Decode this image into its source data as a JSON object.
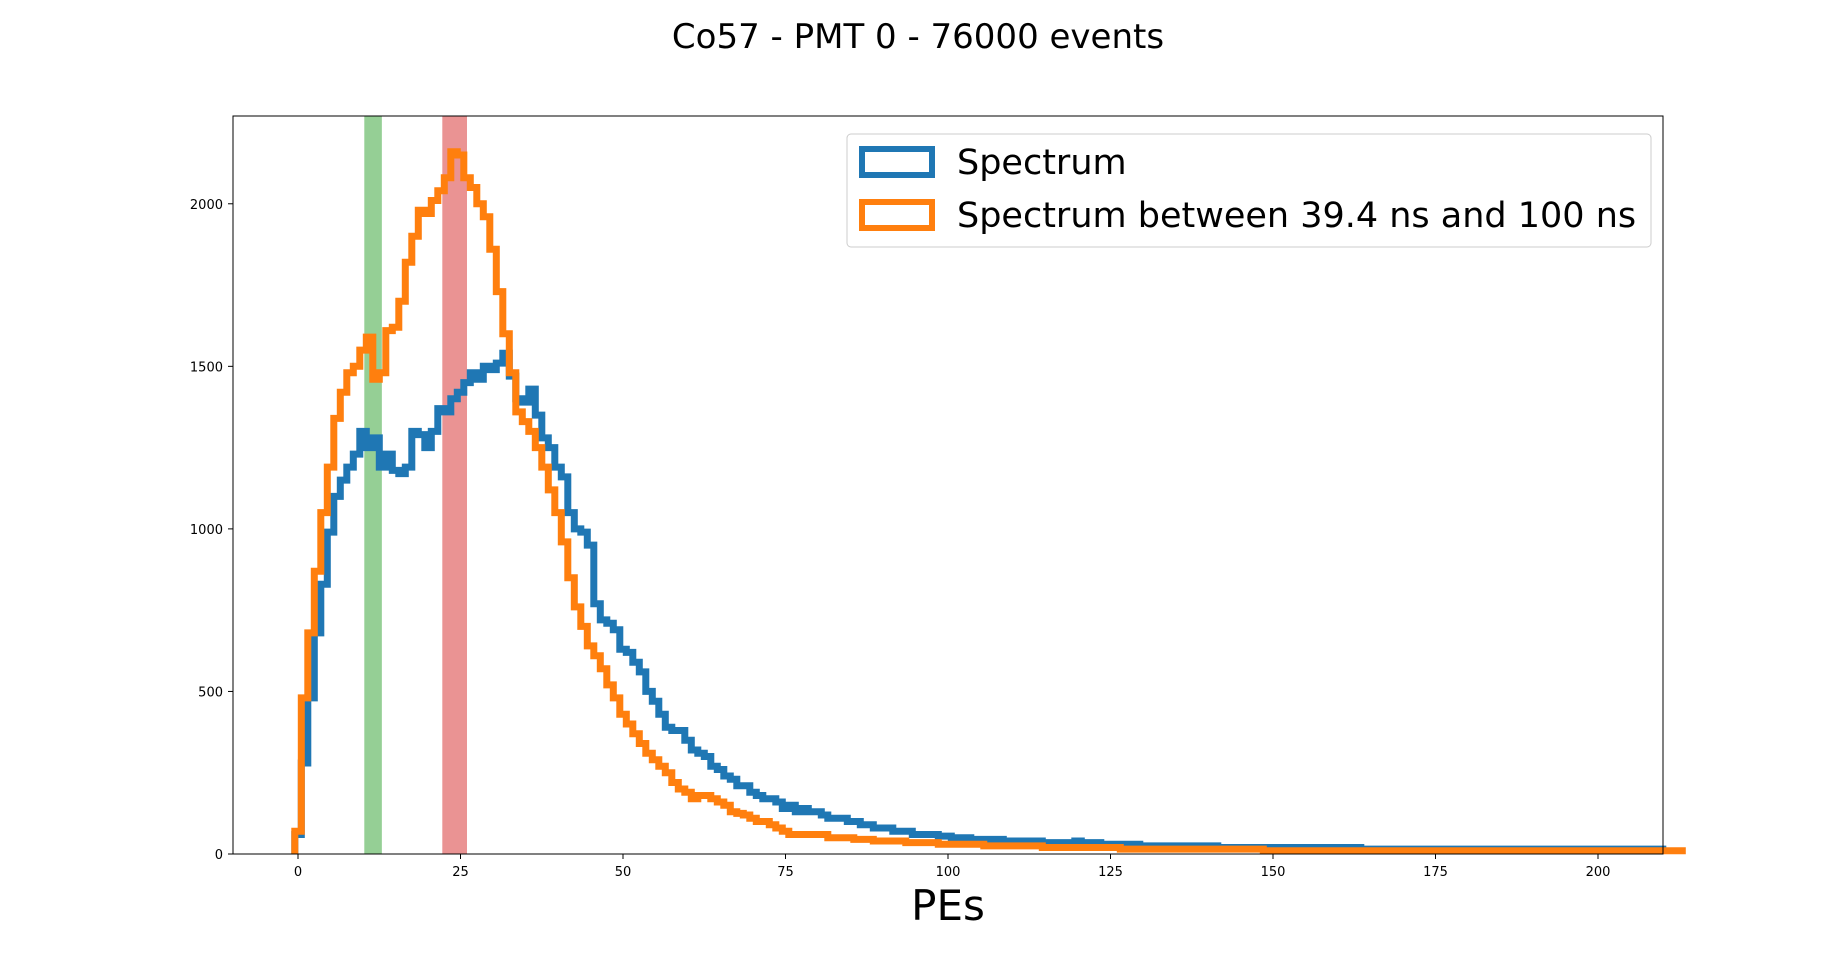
{
  "chart_data": {
    "type": "line",
    "title": "Co57 - PMT 0 - 76000 events",
    "xlabel": "PEs",
    "ylabel": "",
    "xlim": [
      -10,
      210
    ],
    "ylim": [
      0,
      2270
    ],
    "xticks": [
      0,
      25,
      50,
      75,
      100,
      125,
      150,
      175,
      200
    ],
    "yticks": [
      0,
      500,
      1000,
      1500,
      2000
    ],
    "grid": false,
    "legend_position": "top-right",
    "bin_width": 1,
    "x_start": -0.5,
    "highlight_bands": [
      {
        "x0": 10.2,
        "x1": 12.9,
        "color": "#2ca02c",
        "opacity": 0.5
      },
      {
        "x0": 22.2,
        "x1": 26.0,
        "color": "#d62728",
        "opacity": 0.5
      }
    ],
    "series": [
      {
        "name": "Spectrum",
        "color": "#1f77b4",
        "values": [
          60,
          280,
          480,
          680,
          830,
          990,
          1100,
          1150,
          1190,
          1230,
          1300,
          1250,
          1280,
          1190,
          1230,
          1180,
          1170,
          1190,
          1300,
          1290,
          1250,
          1300,
          1370,
          1360,
          1400,
          1420,
          1450,
          1480,
          1460,
          1500,
          1490,
          1510,
          1540,
          1470,
          1400,
          1390,
          1430,
          1350,
          1280,
          1250,
          1190,
          1160,
          1050,
          1000,
          990,
          950,
          770,
          720,
          710,
          690,
          630,
          620,
          590,
          560,
          500,
          470,
          430,
          390,
          380,
          380,
          350,
          320,
          310,
          300,
          270,
          260,
          240,
          230,
          210,
          210,
          190,
          180,
          170,
          170,
          160,
          140,
          150,
          130,
          140,
          130,
          130,
          120,
          110,
          110,
          110,
          100,
          100,
          90,
          90,
          80,
          80,
          80,
          70,
          70,
          70,
          60,
          60,
          60,
          60,
          55,
          55,
          50,
          50,
          50,
          45,
          45,
          45,
          45,
          45,
          40,
          40,
          40,
          40,
          40,
          40,
          35,
          35,
          35,
          35,
          35,
          40,
          35,
          35,
          35,
          30,
          30,
          30,
          30,
          30,
          30,
          25,
          25,
          25,
          25,
          25,
          25,
          25,
          25,
          25,
          25,
          25,
          25,
          20,
          20,
          20,
          20,
          20,
          20,
          20,
          20,
          20,
          20,
          20,
          20,
          20,
          20,
          20,
          20,
          20,
          20,
          20,
          20,
          20,
          20,
          15,
          15,
          15,
          15,
          15,
          15,
          15,
          15,
          15,
          15,
          15,
          15,
          15,
          15,
          15,
          15,
          15,
          15,
          15,
          15,
          15,
          15,
          15,
          15,
          15,
          15,
          15,
          15,
          15,
          15,
          15,
          15,
          15,
          15,
          15,
          15,
          15,
          15,
          15,
          15,
          15,
          15,
          15,
          15,
          15,
          15,
          15
        ]
      },
      {
        "name": "Spectrum between 39.4 ns and 100 ns",
        "color": "#ff7f0e",
        "values": [
          70,
          480,
          680,
          870,
          1050,
          1190,
          1340,
          1420,
          1480,
          1500,
          1550,
          1590,
          1460,
          1480,
          1610,
          1620,
          1700,
          1820,
          1900,
          1980,
          1970,
          2010,
          2040,
          2080,
          2160,
          2150,
          2080,
          2050,
          2000,
          1960,
          1860,
          1730,
          1600,
          1480,
          1360,
          1330,
          1300,
          1250,
          1190,
          1120,
          1050,
          960,
          850,
          760,
          700,
          640,
          610,
          570,
          520,
          480,
          430,
          400,
          370,
          340,
          310,
          290,
          270,
          250,
          220,
          200,
          190,
          170,
          180,
          180,
          170,
          160,
          150,
          130,
          125,
          120,
          110,
          100,
          100,
          90,
          80,
          70,
          60,
          60,
          60,
          60,
          60,
          60,
          50,
          50,
          50,
          50,
          45,
          45,
          45,
          40,
          40,
          40,
          40,
          40,
          35,
          35,
          35,
          35,
          35,
          30,
          30,
          30,
          30,
          30,
          30,
          30,
          25,
          25,
          25,
          25,
          25,
          25,
          25,
          25,
          25,
          20,
          20,
          20,
          20,
          20,
          20,
          20,
          20,
          20,
          20,
          20,
          20,
          15,
          15,
          15,
          15,
          15,
          15,
          15,
          15,
          15,
          15,
          15,
          15,
          15,
          15,
          15,
          15,
          15,
          15,
          15,
          15,
          15,
          15,
          10,
          10,
          10,
          10,
          10,
          10,
          10,
          10,
          10,
          10,
          10,
          10,
          10,
          10,
          10,
          10,
          10,
          10,
          10,
          10,
          10,
          10,
          10,
          10,
          10,
          10,
          10,
          10,
          10,
          10,
          10,
          10,
          10,
          10,
          10,
          10,
          10,
          10,
          10,
          10,
          10,
          10,
          10,
          10,
          10,
          10,
          10,
          10,
          10,
          10,
          10,
          10,
          10,
          10,
          10,
          10,
          10,
          10,
          10,
          10,
          10,
          10,
          10,
          10,
          10
        ]
      }
    ]
  }
}
